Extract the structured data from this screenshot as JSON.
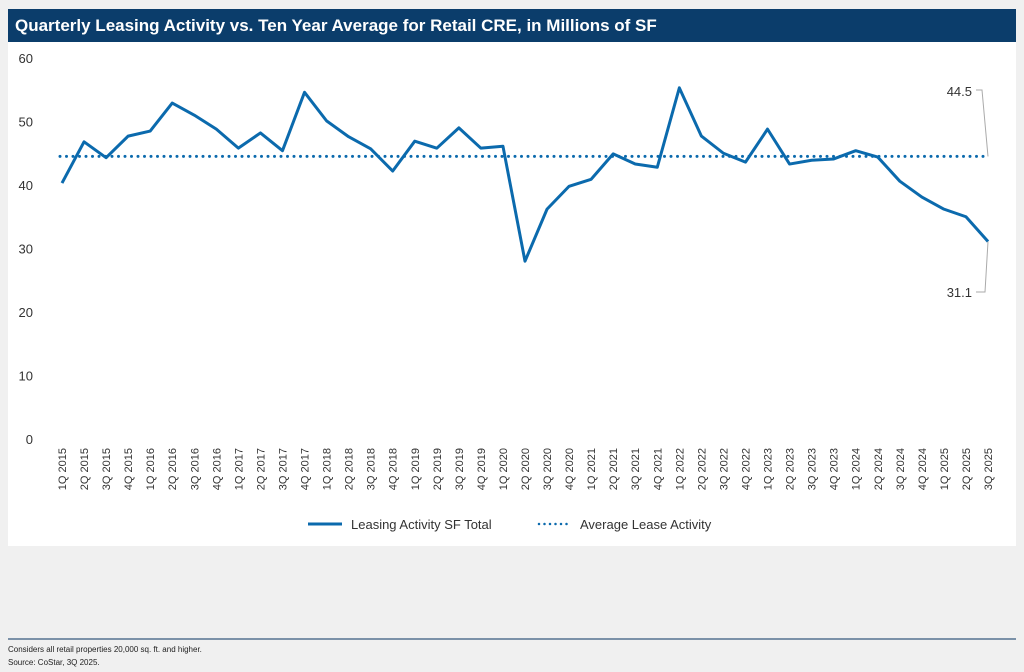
{
  "chart_data": {
    "type": "line",
    "title": "Quarterly Leasing Activity vs. Ten Year Average for Retail CRE, in Millions of SF",
    "xlabel": "",
    "ylabel": "",
    "ylim": [
      0,
      60
    ],
    "yticks": [
      0,
      10,
      20,
      30,
      40,
      50,
      60
    ],
    "grid": false,
    "legend": "bottom",
    "categories": [
      "1Q 2015",
      "2Q 2015",
      "3Q 2015",
      "4Q 2015",
      "1Q 2016",
      "2Q 2016",
      "3Q 2016",
      "4Q 2016",
      "1Q 2017",
      "2Q 2017",
      "3Q 2017",
      "4Q 2017",
      "1Q 2018",
      "2Q 2018",
      "3Q 2018",
      "4Q 2018",
      "1Q 2019",
      "2Q 2019",
      "3Q 2019",
      "4Q 2019",
      "1Q 2020",
      "2Q 2020",
      "3Q 2020",
      "4Q 2020",
      "1Q 2021",
      "2Q 2021",
      "3Q 2021",
      "4Q 2021",
      "1Q 2022",
      "2Q 2022",
      "3Q 2022",
      "4Q 2022",
      "1Q 2023",
      "2Q 2023",
      "3Q 2023",
      "4Q 2023",
      "1Q 2024",
      "2Q 2024",
      "3Q 2024",
      "4Q 2024",
      "1Q 2025",
      "2Q 2025",
      "3Q 2025"
    ],
    "series": [
      {
        "name": "Leasing Activity SF Total",
        "style": "solid",
        "color": "#0b6aad",
        "values": [
          40.3,
          46.8,
          44.3,
          47.7,
          48.5,
          52.9,
          51.0,
          48.8,
          45.8,
          48.2,
          45.4,
          54.6,
          50.1,
          47.6,
          45.7,
          42.2,
          46.9,
          45.8,
          49.0,
          45.8,
          46.1,
          28.0,
          36.2,
          39.8,
          40.9,
          44.9,
          43.3,
          42.8,
          55.3,
          47.7,
          45.0,
          43.6,
          48.8,
          43.3,
          43.9,
          44.1,
          45.4,
          44.4,
          40.6,
          38.1,
          36.2,
          35.0,
          31.1
        ]
      },
      {
        "name": "Average Lease Activity",
        "style": "dotted",
        "color": "#0b6aad",
        "value": 44.5
      }
    ],
    "annotations": [
      {
        "text": "44.5",
        "series": "Average Lease Activity",
        "category": "3Q 2025"
      },
      {
        "text": "31.1",
        "series": "Leasing Activity SF Total",
        "category": "3Q 2025"
      }
    ]
  },
  "footer": {
    "note": "Considers all retail properties 20,000 sq. ft. and higher.",
    "source": "Source: CoStar, 3Q 2025."
  },
  "colors": {
    "title_bar": "#0b3d6b",
    "line": "#0b6aad",
    "background": "#f0f0f0"
  }
}
